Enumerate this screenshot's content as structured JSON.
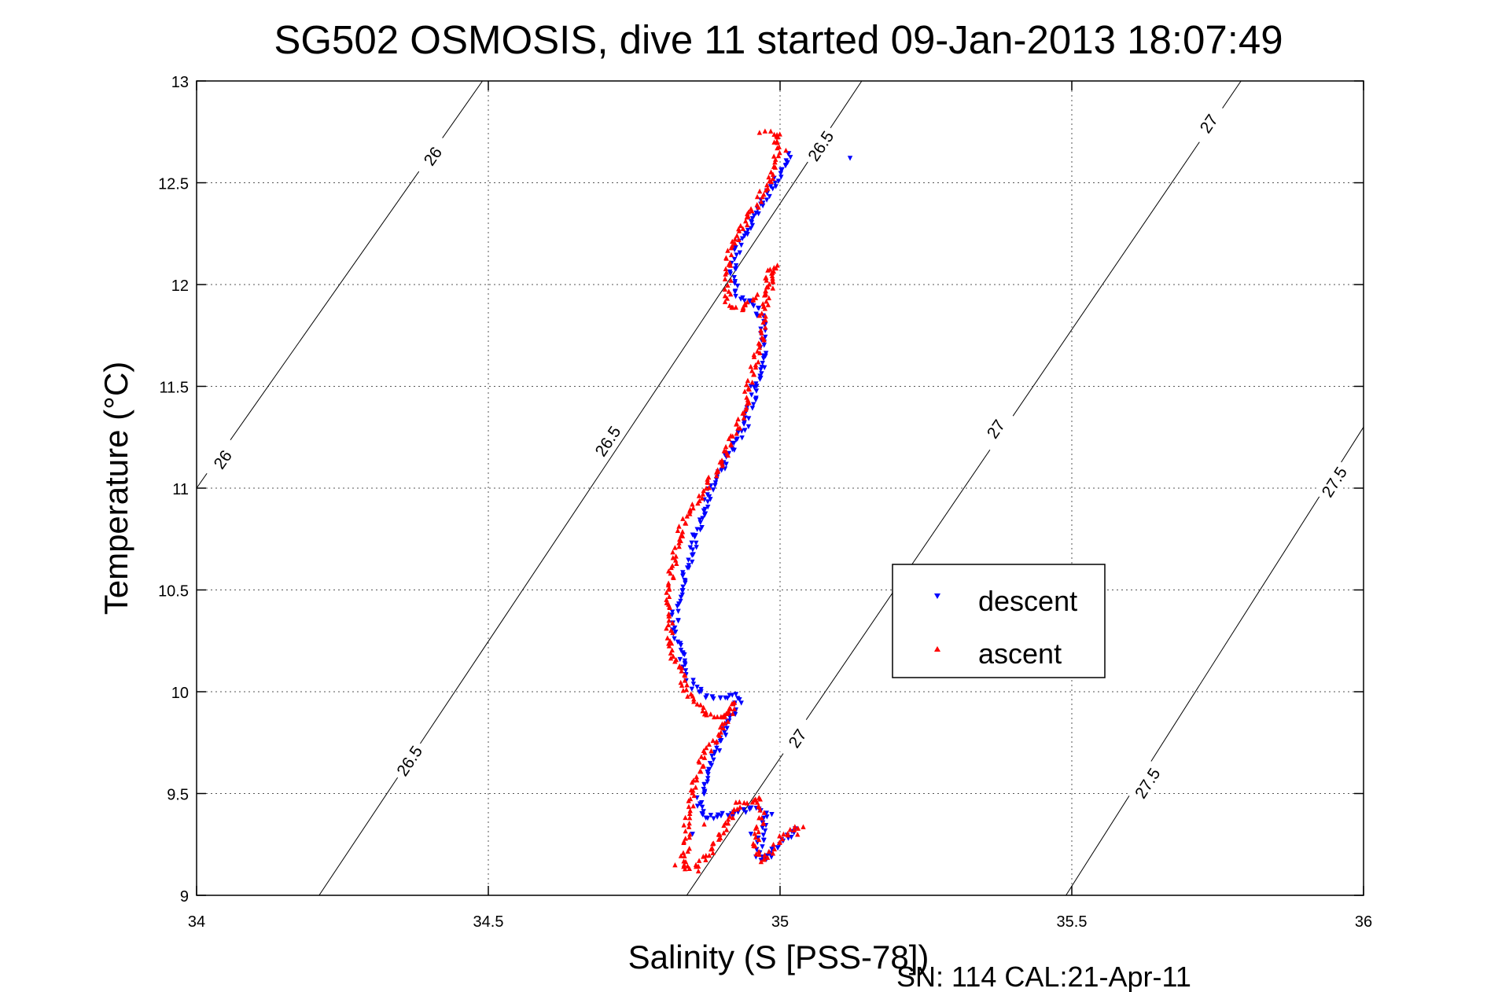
{
  "chart_data": {
    "type": "scatter",
    "title": "SG502 OSMOSIS, dive 11 started 09-Jan-2013 18:07:49",
    "xlabel": "Salinity (S [PSS-78])",
    "ylabel": "Temperature (°C)",
    "footnote": "SN: 114  CAL:21-Apr-11",
    "xlim": [
      34,
      36
    ],
    "ylim": [
      9,
      13
    ],
    "xticks": [
      34,
      34.5,
      35,
      35.5,
      36
    ],
    "xtick_labels": [
      "34",
      "34.5",
      "35",
      "35.5",
      "36"
    ],
    "yticks": [
      9,
      9.5,
      10,
      10.5,
      11,
      11.5,
      12,
      12.5,
      13
    ],
    "ytick_labels": [
      "9",
      "9.5",
      "10",
      "10.5",
      "11",
      "11.5",
      "12",
      "12.5",
      "13"
    ],
    "grid": true,
    "legend_position": "center-right",
    "density_contours": [
      {
        "level": "26",
        "points": [
          [
            34.0,
            11.0
          ],
          [
            34.49,
            13.0
          ]
        ],
        "labels": [
          {
            "x": 34.045,
            "y": 11.14
          },
          {
            "x": 34.405,
            "y": 12.63
          }
        ]
      },
      {
        "level": "26.5",
        "points": [
          [
            34.21,
            9.0
          ],
          [
            35.14,
            13.0
          ]
        ],
        "labels": [
          {
            "x": 34.365,
            "y": 9.66
          },
          {
            "x": 34.705,
            "y": 11.23
          },
          {
            "x": 35.07,
            "y": 12.68
          }
        ]
      },
      {
        "level": "27",
        "points": [
          [
            34.84,
            9.0
          ],
          [
            35.79,
            13.0
          ]
        ],
        "labels": [
          {
            "x": 35.03,
            "y": 9.77
          },
          {
            "x": 35.37,
            "y": 11.29
          },
          {
            "x": 35.735,
            "y": 12.79
          }
        ]
      },
      {
        "level": "27.5",
        "points": [
          [
            35.49,
            9.0
          ],
          [
            36.0,
            11.3
          ]
        ],
        "labels": [
          {
            "x": 35.63,
            "y": 9.55
          },
          {
            "x": 35.95,
            "y": 11.03
          }
        ]
      }
    ],
    "series": [
      {
        "name": "descent",
        "color": "#0000ff",
        "marker": "triangle-down",
        "path": [
          [
            35.02,
            12.65
          ],
          [
            35.01,
            12.6
          ],
          [
            34.99,
            12.5
          ],
          [
            34.97,
            12.4
          ],
          [
            34.95,
            12.3
          ],
          [
            34.93,
            12.2
          ],
          [
            34.92,
            12.1
          ],
          [
            34.92,
            12.0
          ],
          [
            34.93,
            11.95
          ],
          [
            34.96,
            11.9
          ],
          [
            34.97,
            11.8
          ],
          [
            34.97,
            11.7
          ],
          [
            34.97,
            11.6
          ],
          [
            34.96,
            11.5
          ],
          [
            34.95,
            11.4
          ],
          [
            34.94,
            11.3
          ],
          [
            34.92,
            11.2
          ],
          [
            34.9,
            11.1
          ],
          [
            34.88,
            11.0
          ],
          [
            34.87,
            10.9
          ],
          [
            34.86,
            10.8
          ],
          [
            34.85,
            10.7
          ],
          [
            34.84,
            10.6
          ],
          [
            34.83,
            10.5
          ],
          [
            34.82,
            10.4
          ],
          [
            34.82,
            10.3
          ],
          [
            34.83,
            10.2
          ],
          [
            34.84,
            10.1
          ],
          [
            34.85,
            10.02
          ],
          [
            34.88,
            9.97
          ],
          [
            34.92,
            9.98
          ],
          [
            34.93,
            9.95
          ],
          [
            34.91,
            9.85
          ],
          [
            34.89,
            9.7
          ],
          [
            34.88,
            9.6
          ],
          [
            34.87,
            9.55
          ],
          [
            34.86,
            9.45
          ],
          [
            34.87,
            9.38
          ],
          [
            34.92,
            9.4
          ],
          [
            34.96,
            9.43
          ],
          [
            34.98,
            9.4
          ],
          [
            34.97,
            9.3
          ],
          [
            34.96,
            9.2
          ],
          [
            34.97,
            9.17
          ],
          [
            35.0,
            9.25
          ],
          [
            35.03,
            9.33
          ]
        ],
        "extra_points": [
          [
            35.12,
            12.62
          ],
          [
            34.96,
            11.5
          ],
          [
            34.95,
            11.5
          ],
          [
            34.85,
            9.3
          ],
          [
            34.95,
            9.3
          ]
        ]
      },
      {
        "name": "ascent",
        "color": "#ff0000",
        "marker": "triangle-up",
        "path": [
          [
            34.97,
            12.75
          ],
          [
            34.99,
            12.74
          ],
          [
            35.0,
            12.73
          ],
          [
            35.0,
            12.68
          ],
          [
            34.99,
            12.6
          ],
          [
            34.98,
            12.5
          ],
          [
            34.96,
            12.4
          ],
          [
            34.94,
            12.3
          ],
          [
            34.92,
            12.2
          ],
          [
            34.91,
            12.1
          ],
          [
            34.91,
            12.0
          ],
          [
            34.91,
            11.9
          ],
          [
            34.93,
            11.88
          ],
          [
            34.97,
            11.95
          ],
          [
            34.99,
            12.1
          ],
          [
            34.98,
            11.95
          ],
          [
            34.97,
            11.85
          ],
          [
            34.97,
            11.75
          ],
          [
            34.96,
            11.65
          ],
          [
            34.95,
            11.55
          ],
          [
            34.94,
            11.4
          ],
          [
            34.92,
            11.25
          ],
          [
            34.9,
            11.12
          ],
          [
            34.87,
            11.0
          ],
          [
            34.85,
            10.9
          ],
          [
            34.83,
            10.8
          ],
          [
            34.82,
            10.7
          ],
          [
            34.81,
            10.5
          ],
          [
            34.81,
            10.35
          ],
          [
            34.81,
            10.22
          ],
          [
            34.83,
            10.1
          ],
          [
            34.84,
            10.0
          ],
          [
            34.86,
            9.93
          ],
          [
            34.89,
            9.87
          ],
          [
            34.91,
            9.9
          ],
          [
            34.92,
            9.95
          ],
          [
            34.9,
            9.8
          ],
          [
            34.87,
            9.7
          ],
          [
            34.86,
            9.6
          ],
          [
            34.85,
            9.5
          ],
          [
            34.84,
            9.35
          ],
          [
            34.84,
            9.25
          ],
          [
            34.83,
            9.15
          ],
          [
            34.85,
            9.13
          ],
          [
            34.88,
            9.2
          ],
          [
            34.91,
            9.35
          ],
          [
            34.93,
            9.45
          ],
          [
            34.96,
            9.48
          ],
          [
            34.97,
            9.4
          ],
          [
            34.96,
            9.3
          ],
          [
            34.96,
            9.22
          ],
          [
            34.97,
            9.17
          ],
          [
            35.0,
            9.28
          ],
          [
            35.04,
            9.35
          ]
        ],
        "extra_points": [
          [
            34.82,
            9.15
          ],
          [
            34.86,
            9.12
          ],
          [
            34.87,
            9.35
          ],
          [
            35.03,
            9.3
          ],
          [
            34.99,
            12.7
          ],
          [
            35.01,
            12.66
          ]
        ]
      }
    ]
  }
}
